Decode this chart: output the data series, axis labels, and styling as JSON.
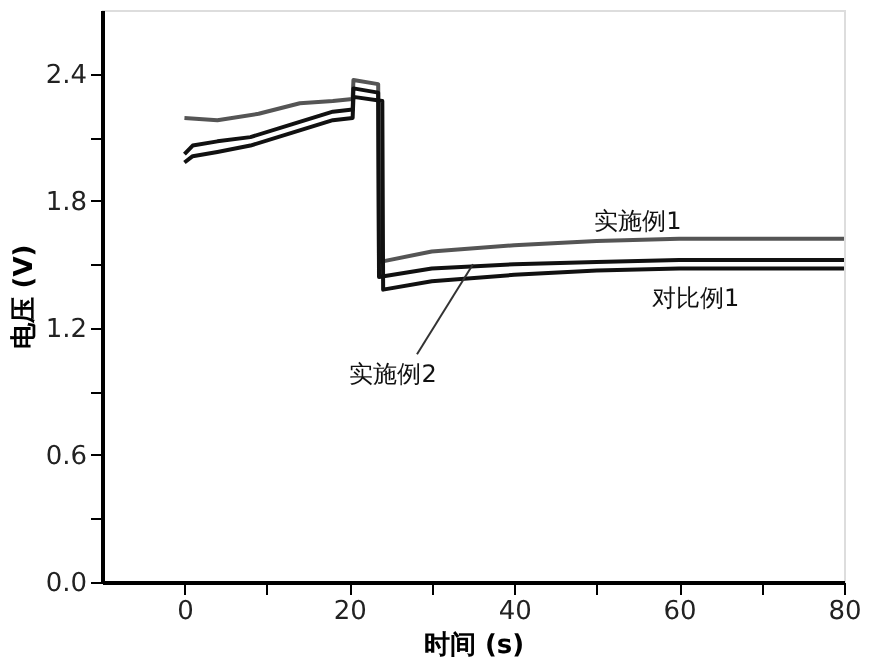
{
  "chart_data": {
    "type": "line",
    "xlabel": "时间 (s)",
    "ylabel": "电压 (V)",
    "xlim": [
      -10,
      80
    ],
    "ylim": [
      0,
      2.7
    ],
    "xticks": [
      0,
      {
        "value": 10,
        "label": null
      },
      20,
      {
        "value": 30,
        "label": null
      },
      40,
      {
        "value": 50,
        "label": null
      },
      60,
      {
        "value": 70,
        "label": null
      },
      80
    ],
    "yticks": [
      {
        "value": 0,
        "label": "0.0"
      },
      {
        "value": 0.3,
        "label": null
      },
      {
        "value": 0.6,
        "label": "0.6"
      },
      {
        "value": 0.9,
        "label": null
      },
      {
        "value": 1.2,
        "label": "1.2"
      },
      {
        "value": 1.5,
        "label": null
      },
      {
        "value": 1.8,
        "label": "1.8"
      },
      {
        "value": 2.1,
        "label": null
      },
      {
        "value": 2.4,
        "label": "2.4"
      }
    ],
    "grid": false,
    "legend": false,
    "marker": "none",
    "line_style": "solid",
    "series": [
      {
        "color": "#555555",
        "x": [
          0,
          4,
          9,
          14,
          18,
          20.4,
          20.5,
          23.5,
          23.6,
          30,
          40,
          50,
          60,
          80
        ],
        "values": [
          2.19,
          2.18,
          2.21,
          2.26,
          2.27,
          2.28,
          2.37,
          2.35,
          1.51,
          1.56,
          1.59,
          1.61,
          1.62,
          1.62
        ]
      },
      {
        "color": "#111111",
        "x": [
          0,
          1,
          4,
          8,
          13,
          18,
          20.4,
          20.5,
          23.5,
          23.6,
          30,
          40,
          50,
          60,
          80
        ],
        "values": [
          2.02,
          2.06,
          2.08,
          2.1,
          2.16,
          2.22,
          2.23,
          2.33,
          2.31,
          1.44,
          1.48,
          1.5,
          1.51,
          1.52,
          1.52
        ]
      },
      {
        "color": "#111111",
        "x": [
          0,
          1,
          4,
          8,
          13,
          18,
          20.4,
          20.5,
          24,
          24.1,
          30,
          40,
          50,
          60,
          80
        ],
        "values": [
          1.98,
          2.01,
          2.03,
          2.06,
          2.12,
          2.18,
          2.19,
          2.29,
          2.27,
          1.38,
          1.42,
          1.45,
          1.47,
          1.48,
          1.48
        ]
      }
    ],
    "annotations": [
      {
        "text": "实施例1",
        "x": 55,
        "y": 1.61
      },
      {
        "text": "实施例2",
        "x": 35,
        "y": 1.5
      },
      {
        "text": "对比例1",
        "x": 62,
        "y": 1.48
      }
    ]
  }
}
